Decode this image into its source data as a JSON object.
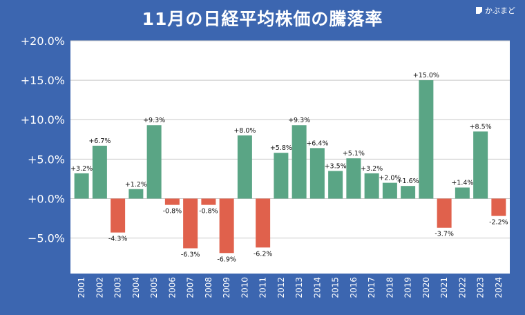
{
  "title": "11月の日経平均株価の騰落率",
  "brand": "かぶまど",
  "colors": {
    "background": "#3c66b0",
    "plot_bg": "#ffffff",
    "positive": "#5aa585",
    "negative": "#e0614c",
    "grid": "#c8c8c8"
  },
  "chart_data": {
    "type": "bar",
    "title": "11月の日経平均株価の騰落率",
    "xlabel": "",
    "ylabel": "",
    "ylim": [
      -9.5,
      20.0
    ],
    "yticks": [
      20,
      15,
      10,
      5,
      0,
      -5
    ],
    "ytick_labels": [
      "+20.0%",
      "+15.0%",
      "+10.0%",
      "+5.0%",
      "+0.0%",
      "−5.0%"
    ],
    "grid": true,
    "categories": [
      "2001",
      "2002",
      "2003",
      "2004",
      "2005",
      "2006",
      "2007",
      "2008",
      "2009",
      "2010",
      "2011",
      "2012",
      "2013",
      "2014",
      "2015",
      "2016",
      "2017",
      "2018",
      "2019",
      "2020",
      "2021",
      "2022",
      "2023",
      "2024"
    ],
    "values": [
      3.2,
      6.7,
      -4.3,
      1.2,
      9.3,
      -0.8,
      -6.3,
      -0.8,
      -6.9,
      8.0,
      -6.2,
      5.8,
      9.3,
      6.4,
      3.5,
      5.1,
      3.2,
      2.0,
      1.6,
      15.0,
      -3.7,
      1.4,
      8.5,
      -2.2
    ],
    "data_labels": [
      "+3.2%",
      "+6.7%",
      "-4.3%",
      "+1.2%",
      "+9.3%",
      "-0.8%",
      "-6.3%",
      "-0.8%",
      "-6.9%",
      "+8.0%",
      "-6.2%",
      "+5.8%",
      "+9.3%",
      "+6.4%",
      "+3.5%",
      "+5.1%",
      "+3.2%",
      "+2.0%",
      "+1.6%",
      "+15.0%",
      "-3.7%",
      "+1.4%",
      "+8.5%",
      "-2.2%"
    ]
  }
}
